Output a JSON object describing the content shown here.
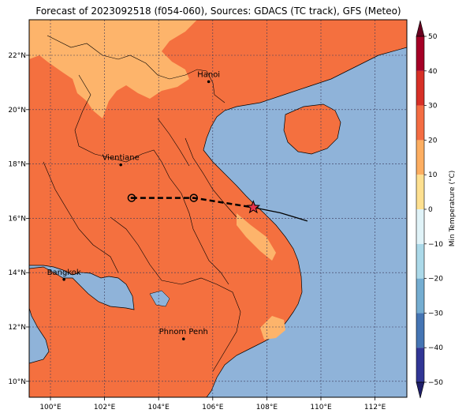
{
  "title": "Forecast of 2023092518 (f054-060), Sources: GDACS (TC track), GFS (Meteo)",
  "lon_ticks": [
    "100°E",
    "102°E",
    "104°E",
    "106°E",
    "108°E",
    "110°E",
    "112°E"
  ],
  "lat_ticks": [
    "22°N",
    "20°N",
    "18°N",
    "16°N",
    "14°N",
    "12°N",
    "10°N"
  ],
  "colorbar": {
    "label": "Min Temperature (°C)",
    "ticks": [
      "50",
      "40",
      "30",
      "20",
      "10",
      "0",
      "−10",
      "−20",
      "−30",
      "−40",
      "−50"
    ],
    "range": [
      -50,
      50
    ],
    "colors": [
      "#313695",
      "#4575b4",
      "#74add1",
      "#abd9e9",
      "#e0f3f8",
      "#fee090",
      "#fdae61",
      "#f46d43",
      "#d73027",
      "#a50026"
    ]
  },
  "colors": {
    "sea": "#8fb3d9",
    "land_warm": "#f4703f",
    "land_mild": "#fdb46b",
    "track": "#000000",
    "storm_star": "#e8334a"
  },
  "cities": [
    {
      "name": "Hanoi",
      "lon": 105.85,
      "lat": 21.03
    },
    {
      "name": "Vientiane",
      "lon": 102.6,
      "lat": 17.97
    },
    {
      "name": "Bangkok",
      "lon": 100.5,
      "lat": 13.75
    },
    {
      "name": "Phnom Penh",
      "lon": 104.92,
      "lat": 11.56
    }
  ],
  "track": {
    "forecast_points": [
      {
        "lon": 103.0,
        "lat": 16.75
      },
      {
        "lon": 105.3,
        "lat": 16.75
      },
      {
        "lon": 107.5,
        "lat": 16.4
      }
    ],
    "past_track": [
      {
        "lon": 107.5,
        "lat": 16.4
      },
      {
        "lon": 108.5,
        "lat": 16.2
      },
      {
        "lon": 109.5,
        "lat": 15.9
      }
    ],
    "current_position": {
      "lon": 107.5,
      "lat": 16.4
    }
  }
}
